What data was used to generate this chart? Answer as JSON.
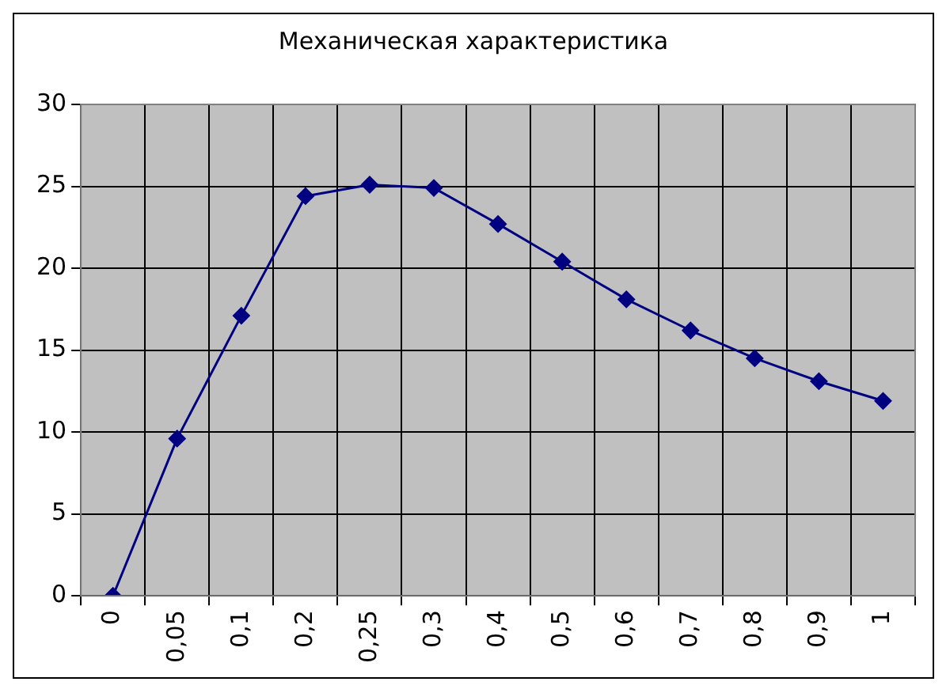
{
  "chart_data": {
    "type": "line",
    "title": "Механическая характеристика",
    "categories": [
      "0",
      "0,05",
      "0,1",
      "0,2",
      "0,25",
      "0,3",
      "0,4",
      "0,5",
      "0,6",
      "0,7",
      "0,8",
      "0,9",
      "1"
    ],
    "series": [
      {
        "color": "#000080",
        "values": [
          0,
          9.6,
          17.1,
          24.4,
          25.1,
          24.9,
          22.7,
          20.4,
          18.1,
          16.2,
          14.5,
          13.1,
          11.9
        ]
      }
    ],
    "ylim": [
      0,
      30
    ],
    "yticks": [
      0,
      5,
      10,
      15,
      20,
      25,
      30
    ],
    "grid": true,
    "legend": false,
    "marker": "diamond",
    "line_style": "solid"
  }
}
